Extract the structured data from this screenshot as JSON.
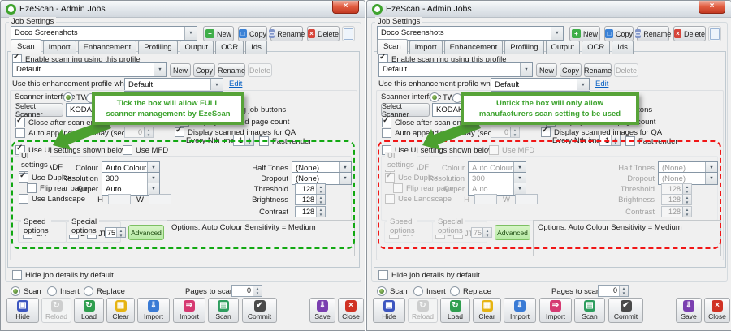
{
  "colors": {
    "callout_green": "#57a338",
    "callout_text_green": "#3da32e",
    "dashed_enabled_green": "#12a812",
    "dashed_disabled_red": "#f01616",
    "link_blue": "#0a62c4",
    "logo_green": "#3fa32e"
  },
  "common": {
    "title": "EzeScan - Admin Jobs",
    "close_glyph": "×",
    "job_settings": {
      "group_label": "Job Settings",
      "profile_value": "Doco Screenshots",
      "new_label": "New",
      "copy_label": "Copy",
      "rename_label": "Rename",
      "delete_label": "Delete",
      "tabs": [
        "Scan",
        "Import",
        "Enhancement",
        "Profiling",
        "Output",
        "OCR",
        "Ids"
      ]
    },
    "icons": {
      "new": "+",
      "copy": "□",
      "rename": "▭",
      "delete": "×"
    },
    "scan_tab": {
      "enable_scanning": "Enable scanning using this profile",
      "scan_profile_value": "Default",
      "new": "New",
      "copy": "Copy",
      "rename": "Rename",
      "delete": "Delete",
      "enhancement_label": "Use this enhancement profile when scanning",
      "enhancement_value": "Default",
      "edit": "Edit",
      "scanner_interface": "Scanner interface",
      "twain": "TWAIN",
      "select_scanner": "Select Scanner",
      "scanner_value": "KODAK S",
      "close_after": "Close after scan ends",
      "confirm_job_buttons": "Confirm if using job buttons",
      "page_count": "Display scanned page count",
      "auto_append": "Auto append with delay (sec)",
      "auto_append_value": "0",
      "display_qa": "Display scanned images for QA",
      "every_nth": "Every Nth image",
      "every_nth_value": "1",
      "fast_render": "Fast render",
      "use_ui": "Use UI settings shown below",
      "use_mfd": "Use MFD",
      "ui": {
        "group_label": "UI settings",
        "use_adf": "Use ADF",
        "use_duplex": "Use Duplex",
        "flip_rear": "Flip rear page",
        "use_landscape": "Use Landscape",
        "colour": "Colour",
        "colour_value": "Auto Colour",
        "resolution": "Resolution",
        "resolution_value": "300",
        "paper": "Paper",
        "paper_value": "Auto",
        "h": "H",
        "w": "W",
        "half_tones": "Half Tones",
        "half_tones_value": "(None)",
        "dropout": "Dropout",
        "dropout_value": "(None)",
        "threshold": "Threshold",
        "threshold_value": "128",
        "brightness": "Brightness",
        "brightness_value": "128",
        "contrast": "Contrast",
        "contrast_value": "128"
      },
      "speed_options": "Speed options",
      "sa": "SA",
      "special_options": "Special options",
      "dt": "DT",
      "jt": "JT",
      "jt_value": "75",
      "advanced": "Advanced",
      "options_text": "Options: Auto Colour Sensitivity = Medium"
    },
    "footer": {
      "hide_job_details": "Hide job details by default",
      "scan": "Scan",
      "insert": "Insert",
      "replace": "Replace",
      "pages_to_scan": "Pages to scan",
      "pages_value": "0",
      "toolbar": [
        {
          "label": "Hide",
          "icon": "hide-icon",
          "glyph": "▣",
          "color": "#3d56c0",
          "disabled": false
        },
        {
          "label": "Reload",
          "icon": "reload-icon",
          "glyph": "↻",
          "color": "#9aa0a6",
          "disabled": true
        },
        {
          "label": "Load",
          "icon": "load-icon",
          "glyph": "↻",
          "color": "#2f9e4f",
          "disabled": false
        },
        {
          "label": "Clear",
          "icon": "clear-icon",
          "glyph": "▦",
          "color": "#e6b412",
          "disabled": false
        },
        {
          "label": "Import",
          "icon": "import-file-icon",
          "glyph": "⇓",
          "color": "#3a7bd5",
          "disabled": false
        },
        {
          "label": "Import",
          "icon": "import-folder-icon",
          "glyph": "⇒",
          "color": "#d63a72",
          "disabled": false
        },
        {
          "label": "Scan",
          "icon": "scan-icon",
          "glyph": "▤",
          "color": "#2f9e5f",
          "disabled": false
        },
        {
          "label": "Commit",
          "icon": "commit-icon",
          "glyph": "✔",
          "color": "#4a4a4a",
          "disabled": false
        },
        {
          "label": "Save",
          "icon": "save-icon",
          "glyph": "⇓",
          "color": "#7a3fb0",
          "disabled": false
        },
        {
          "label": "Close",
          "icon": "close-red-icon",
          "glyph": "×",
          "color": "#d03224",
          "disabled": false
        }
      ]
    },
    "checks": {
      "enable_scanning": true,
      "close_after": true,
      "confirm_job_buttons": true,
      "page_count": true,
      "auto_append": false,
      "display_qa": true,
      "fast_render": false,
      "use_mfd": false,
      "use_adf": true,
      "use_duplex": true,
      "flip_rear": false,
      "use_landscape": false,
      "sa": true,
      "dt": false,
      "jt": true,
      "hide_job_details": false,
      "twain": true,
      "iface2": false,
      "mode_scan": true,
      "mode_insert": false,
      "mode_replace": false
    }
  },
  "windows": [
    {
      "callout": {
        "line1": "Tick the box will allow FULL",
        "line2": "scanner management by EzeScan"
      },
      "use_ui_checked": true,
      "ui_disabled": false
    },
    {
      "callout": {
        "line1": "Untick the box will only allow",
        "line2": "manufacturers scan setting to be used"
      },
      "use_ui_checked": false,
      "ui_disabled": true
    }
  ]
}
